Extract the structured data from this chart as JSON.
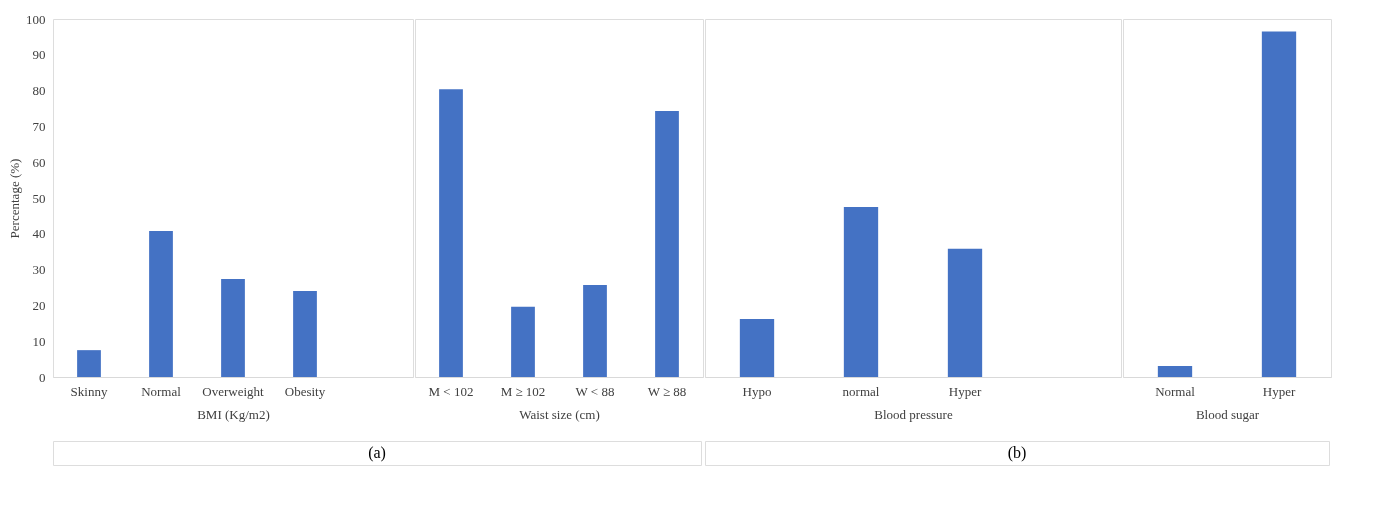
{
  "chart_data": [
    {
      "type": "bar",
      "xlabel": "BMI (Kg/m2)",
      "ylabel": "Percentage (%)",
      "categories": [
        "Skinny",
        "Normal",
        "Overweight",
        "Obesity",
        null
      ],
      "values": [
        7.5,
        40.8,
        27.4,
        24.0,
        null
      ],
      "color": "#4472c4",
      "ylim": [
        0,
        100
      ],
      "yticks": [
        0,
        10,
        20,
        30,
        40,
        50,
        60,
        70,
        80,
        90,
        100
      ],
      "grid": false,
      "annotations": [
        "(a)"
      ]
    },
    {
      "type": "bar",
      "xlabel": "Waist size (cm)",
      "categories": [
        "M < 102",
        "M ≥ 102",
        "W < 88",
        "W ≥ 88"
      ],
      "values": [
        80.4,
        19.6,
        25.7,
        74.3
      ],
      "color": "#4472c4",
      "ylim": [
        0,
        100
      ],
      "grid": false,
      "tick_labels": "x"
    },
    {
      "type": "bar",
      "xlabel": "Blood pressure",
      "categories": [
        "Hypo",
        "normal",
        "Hyper",
        null
      ],
      "values": [
        16.2,
        47.5,
        35.8,
        null
      ],
      "color": "#4472c4",
      "ylim": [
        0,
        100
      ],
      "grid": false,
      "tick_labels": "x",
      "annotations": [
        "(b)"
      ]
    },
    {
      "type": "bar",
      "xlabel": "Blood sugar",
      "categories": [
        "Normal",
        "Hyper"
      ],
      "values": [
        3.1,
        96.5
      ],
      "color": "#4472c4",
      "ylim": [
        0,
        100
      ],
      "grid": false,
      "tick_labels": "x"
    }
  ]
}
